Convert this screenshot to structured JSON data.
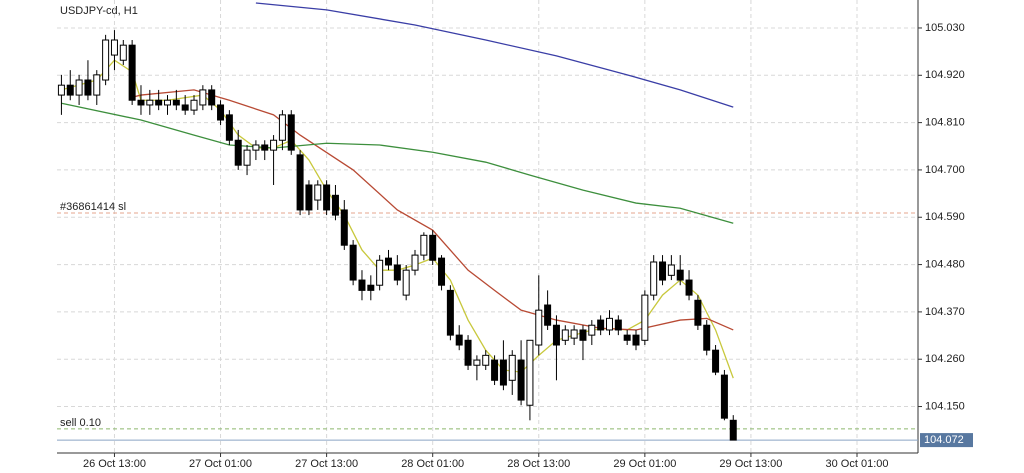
{
  "chart_data": {
    "type": "candlestick",
    "title": "USDJPY-cd, H1",
    "open": [
      104.874,
      104.897,
      104.874,
      104.909,
      104.874,
      104.909,
      104.967,
      104.955,
      104.99,
      104.862,
      104.851,
      104.862,
      104.851,
      104.862,
      104.851,
      104.839,
      104.851,
      104.886,
      104.851,
      104.828,
      104.769,
      104.711,
      104.746,
      104.758,
      104.746,
      104.769,
      104.828,
      104.735,
      104.665,
      104.63,
      104.665,
      104.641,
      104.607,
      104.525,
      104.444,
      104.432,
      104.432,
      104.495,
      104.479,
      104.409,
      104.467,
      104.502,
      104.548,
      104.495,
      104.42,
      104.316,
      104.304,
      104.246,
      104.246,
      104.258,
      104.258,
      104.211,
      104.258,
      104.153,
      104.293,
      104.386,
      104.339,
      104.304,
      104.309,
      104.328,
      104.316,
      104.351,
      104.328,
      104.351,
      104.316,
      104.316,
      104.304,
      104.409,
      104.486,
      104.455,
      104.467,
      104.444,
      104.397,
      104.339,
      104.281,
      104.223,
      104.118
    ],
    "high": [
      104.921,
      104.932,
      104.921,
      104.955,
      104.932,
      105.014,
      105.025,
      105.002,
      105.002,
      104.897,
      104.886,
      104.886,
      104.874,
      104.886,
      104.874,
      104.874,
      104.897,
      104.897,
      104.862,
      104.839,
      104.793,
      104.758,
      104.769,
      104.769,
      104.781,
      104.839,
      104.839,
      104.746,
      104.676,
      104.676,
      104.676,
      104.665,
      104.63,
      104.537,
      104.467,
      104.455,
      104.502,
      104.514,
      104.502,
      104.479,
      104.514,
      104.555,
      104.56,
      104.502,
      104.432,
      104.339,
      104.316,
      104.269,
      104.281,
      104.269,
      104.304,
      104.281,
      104.304,
      104.304,
      104.455,
      104.42,
      104.362,
      104.339,
      104.339,
      104.339,
      104.351,
      104.362,
      104.374,
      104.362,
      104.328,
      104.328,
      104.42,
      104.502,
      104.502,
      104.502,
      104.502,
      104.467,
      104.409,
      104.351,
      104.293,
      104.235,
      104.13
    ],
    "low": [
      104.828,
      104.862,
      104.851,
      104.862,
      104.851,
      104.897,
      104.932,
      104.944,
      104.851,
      104.828,
      104.828,
      104.839,
      104.828,
      104.839,
      104.828,
      104.828,
      104.839,
      104.839,
      104.804,
      104.758,
      104.7,
      104.688,
      104.723,
      104.723,
      104.665,
      104.746,
      104.735,
      104.595,
      104.595,
      104.607,
      104.595,
      104.583,
      104.514,
      104.432,
      104.397,
      104.397,
      104.42,
      104.467,
      104.432,
      104.397,
      104.455,
      104.49,
      104.479,
      104.42,
      104.304,
      104.281,
      104.235,
      104.211,
      104.235,
      104.2,
      104.188,
      104.177,
      104.153,
      104.118,
      104.269,
      104.328,
      104.211,
      104.293,
      104.293,
      104.258,
      104.293,
      104.316,
      104.316,
      104.316,
      104.293,
      104.281,
      104.293,
      104.397,
      104.432,
      104.444,
      104.432,
      104.397,
      104.328,
      104.269,
      104.223,
      104.118,
      104.072
    ],
    "close": [
      104.897,
      104.874,
      104.909,
      104.874,
      104.921,
      105.002,
      105.002,
      104.99,
      104.862,
      104.851,
      104.862,
      104.851,
      104.862,
      104.851,
      104.839,
      104.862,
      104.886,
      104.851,
      104.816,
      104.769,
      104.711,
      104.746,
      104.758,
      104.746,
      104.769,
      104.828,
      104.746,
      104.607,
      104.607,
      104.665,
      104.607,
      104.595,
      104.525,
      104.444,
      104.42,
      104.42,
      104.49,
      104.479,
      104.444,
      104.467,
      104.502,
      104.548,
      104.49,
      104.432,
      104.316,
      104.293,
      104.246,
      104.258,
      104.269,
      104.211,
      104.2,
      104.269,
      104.165,
      104.304,
      104.374,
      104.339,
      104.293,
      104.328,
      104.328,
      104.304,
      104.339,
      104.328,
      104.355,
      104.328,
      104.304,
      104.293,
      104.409,
      104.486,
      104.444,
      104.479,
      104.444,
      104.409,
      104.339,
      104.281,
      104.23,
      104.123,
      104.072
    ],
    "series": [
      {
        "color": "#c8c83c",
        "x": [
          0,
          4,
          6,
          8,
          9,
          12,
          16,
          18,
          20,
          22,
          24,
          26,
          28,
          30,
          32,
          34,
          36,
          38,
          40,
          42,
          44,
          46,
          48,
          50,
          52,
          54,
          56,
          58,
          60,
          62,
          64,
          66,
          68,
          70,
          72,
          74,
          76
        ],
        "values": [
          104.886,
          104.909,
          104.955,
          104.928,
          104.862,
          104.862,
          104.874,
          104.839,
          104.781,
          104.751,
          104.751,
          104.769,
          104.723,
          104.653,
          104.595,
          104.514,
          104.467,
          104.467,
          104.479,
          104.495,
          104.444,
          104.351,
          104.281,
          104.235,
          104.23,
          104.269,
          104.304,
          104.316,
          104.328,
          104.332,
          104.328,
          104.351,
          104.409,
          104.444,
          104.409,
          104.328,
          104.216
        ]
      },
      {
        "color": "#b84a34",
        "x": [
          8,
          9,
          15,
          19,
          24,
          27,
          33,
          38,
          42,
          46,
          49,
          52,
          56,
          61,
          65,
          70,
          73,
          76
        ],
        "values": [
          104.869,
          104.874,
          104.886,
          104.862,
          104.828,
          104.781,
          104.7,
          104.607,
          104.56,
          104.467,
          104.42,
          104.374,
          104.351,
          104.332,
          104.328,
          104.351,
          104.355,
          104.328
        ]
      },
      {
        "color": "#3d8f3d",
        "x": [
          0,
          9,
          15,
          19,
          24,
          30,
          36,
          42,
          48,
          53,
          59,
          65,
          70,
          76
        ],
        "values": [
          104.855,
          104.816,
          104.781,
          104.758,
          104.751,
          104.762,
          104.758,
          104.741,
          104.718,
          104.688,
          104.653,
          104.623,
          104.611,
          104.576
        ]
      },
      {
        "color": "#3a3ea6",
        "x": [
          22,
          30,
          40,
          48,
          56,
          64,
          70,
          76
        ],
        "values": [
          105.088,
          105.072,
          105.037,
          105.002,
          104.965,
          104.921,
          104.886,
          104.846
        ]
      }
    ],
    "levels": [
      {
        "label": "#36861414 sl",
        "value": 104.6,
        "color": "#e6a68e"
      },
      {
        "label": "sell 0.10",
        "value": 104.098,
        "color": "#8cb86c"
      }
    ],
    "current_price": 104.072,
    "ylim": [
      104.042,
      105.095
    ],
    "yticks": [
      {
        "value": 105.03,
        "label": "105.030"
      },
      {
        "value": 104.92,
        "label": "104.920"
      },
      {
        "value": 104.81,
        "label": "104.810"
      },
      {
        "value": 104.7,
        "label": "104.700"
      },
      {
        "value": 104.59,
        "label": "104.590"
      },
      {
        "value": 104.48,
        "label": "104.480"
      },
      {
        "value": 104.37,
        "label": "104.370"
      },
      {
        "value": 104.26,
        "label": "104.260"
      },
      {
        "value": 104.15,
        "label": "104.150"
      }
    ],
    "xlim": [
      -0.5,
      96.9
    ],
    "xticks": [
      {
        "value": 6,
        "label": "26 Oct 13:00"
      },
      {
        "value": 18,
        "label": "27 Oct 01:00"
      },
      {
        "value": 30,
        "label": "27 Oct 13:00"
      },
      {
        "value": 42,
        "label": "28 Oct 01:00"
      },
      {
        "value": 54,
        "label": "28 Oct 13:00"
      },
      {
        "value": 66,
        "label": "29 Oct 01:00"
      },
      {
        "value": 78,
        "label": "29 Oct 13:00"
      },
      {
        "value": 90,
        "label": "30 Oct 01:00"
      }
    ],
    "grid": true
  }
}
